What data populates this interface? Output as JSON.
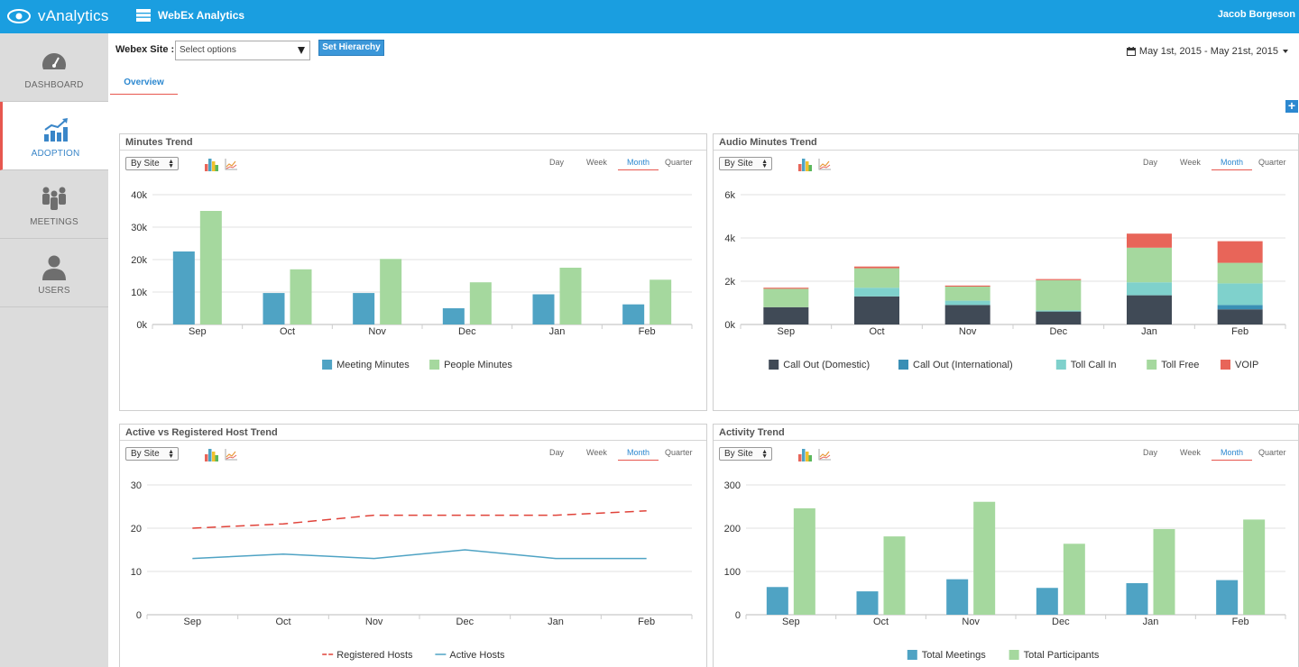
{
  "topbar": {
    "logo": "vAnalytics",
    "app_title": "WebEx Analytics",
    "user": "Jacob Borgeson"
  },
  "sidebar": {
    "items": [
      {
        "label": "DASHBOARD",
        "icon": "gauge-icon"
      },
      {
        "label": "ADOPTION",
        "icon": "bar-chart-up-icon",
        "active": true
      },
      {
        "label": "MEETINGS",
        "icon": "people-group-icon"
      },
      {
        "label": "USERS",
        "icon": "user-icon"
      }
    ]
  },
  "filters": {
    "site_label": "Webex Site :",
    "site_placeholder": "Select options",
    "hierarchy_button": "Set Hierarchy",
    "date_range": "May 1st, 2015 - May 21st, 2015"
  },
  "tabs": {
    "overview": "Overview"
  },
  "panel_controls": {
    "group_by": "By Site",
    "periods": [
      "Day",
      "Week",
      "Month",
      "Quarter"
    ],
    "active_period": "Month"
  },
  "colors": {
    "accent": "#1a9ee0",
    "blue_bar": "#4fa3c4",
    "green_bar": "#a5d89e",
    "dark": "#404a56",
    "teal": "#7fd1cc",
    "red": "#e86559",
    "registered_line": "#e0433a",
    "active_line": "#4fa3c4"
  },
  "panels": {
    "minutes": {
      "title": "Minutes Trend"
    },
    "audio": {
      "title": "Audio Minutes Trend"
    },
    "hosts": {
      "title": "Active vs Registered Host Trend"
    },
    "activity": {
      "title": "Activity Trend"
    }
  },
  "chart_data": [
    {
      "id": "minutes",
      "type": "bar",
      "categories": [
        "Sep",
        "Oct",
        "Nov",
        "Dec",
        "Jan",
        "Feb"
      ],
      "series": [
        {
          "name": "Meeting Minutes",
          "values": [
            22500,
            9700,
            9700,
            5000,
            9300,
            6200
          ]
        },
        {
          "name": "People Minutes",
          "values": [
            35000,
            17000,
            20200,
            13000,
            17500,
            13800
          ]
        }
      ],
      "ylim": [
        0,
        40000
      ],
      "yticks": [
        "0k",
        "10k",
        "20k",
        "30k",
        "40k"
      ],
      "grid": true,
      "legend": "bottom"
    },
    {
      "id": "audio",
      "type": "bar",
      "stacked": true,
      "categories": [
        "Sep",
        "Oct",
        "Nov",
        "Dec",
        "Jan",
        "Feb"
      ],
      "series": [
        {
          "name": "Call Out (Domestic)",
          "values": [
            800,
            1300,
            900,
            600,
            1350,
            700
          ]
        },
        {
          "name": "Call Out (International)",
          "values": [
            0,
            0,
            0,
            0,
            0,
            200
          ]
        },
        {
          "name": "Toll Call In",
          "values": [
            0,
            400,
            200,
            50,
            600,
            1000
          ]
        },
        {
          "name": "Toll Free",
          "values": [
            850,
            900,
            650,
            1400,
            1600,
            950
          ]
        },
        {
          "name": "VOIP",
          "values": [
            50,
            80,
            50,
            50,
            650,
            1000
          ]
        }
      ],
      "ylim": [
        0,
        6000
      ],
      "yticks": [
        "0k",
        "2k",
        "4k",
        "6k"
      ],
      "grid": true,
      "legend": "bottom"
    },
    {
      "id": "hosts",
      "type": "line",
      "categories": [
        "Sep",
        "Oct",
        "Nov",
        "Dec",
        "Jan",
        "Feb"
      ],
      "series": [
        {
          "name": "Registered Hosts",
          "values": [
            20,
            21,
            23,
            23,
            23,
            24
          ],
          "dashed": true
        },
        {
          "name": "Active Hosts",
          "values": [
            13,
            14,
            13,
            15,
            13,
            13
          ]
        }
      ],
      "ylim": [
        0,
        30
      ],
      "yticks": [
        "0",
        "10",
        "20",
        "30"
      ],
      "grid": true,
      "legend": "bottom"
    },
    {
      "id": "activity",
      "type": "bar",
      "categories": [
        "Sep",
        "Oct",
        "Nov",
        "Dec",
        "Jan",
        "Feb"
      ],
      "series": [
        {
          "name": "Total Meetings",
          "values": [
            64,
            54,
            82,
            62,
            73,
            80
          ]
        },
        {
          "name": "Total Participants",
          "values": [
            246,
            181,
            261,
            164,
            198,
            220
          ]
        }
      ],
      "ylim": [
        0,
        300
      ],
      "yticks": [
        "0",
        "100",
        "200",
        "300"
      ],
      "grid": true,
      "legend": "bottom"
    }
  ]
}
